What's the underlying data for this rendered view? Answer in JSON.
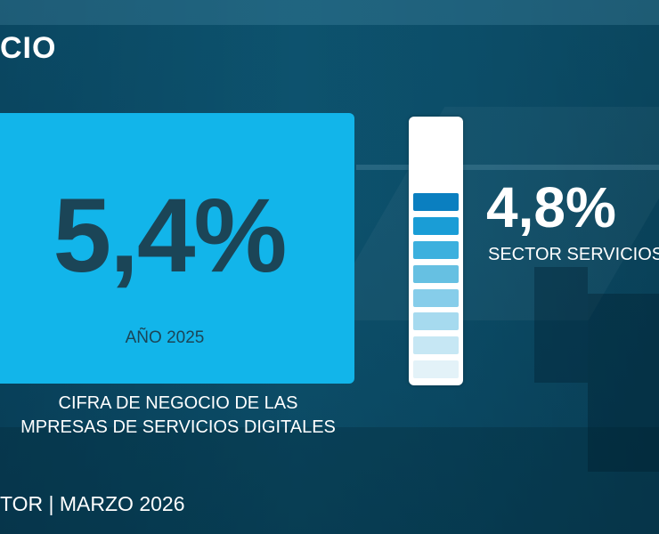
{
  "header": {
    "title": "CIO"
  },
  "main_stat": {
    "value": "5,4%",
    "caption": "AÑO 2025",
    "description_line1": "CIFRA DE NEGOCIO DE LAS",
    "description_line2": "MPRESAS DE SERVICIOS DIGITALES"
  },
  "comparison": {
    "value": "4,8%",
    "label": "SECTOR SERVICIOS",
    "meter_filled_segments": 8,
    "meter_total_segments": 8,
    "meter_colors": [
      "#0a7fc0",
      "#1a9dd6",
      "#3cb0de",
      "#66c0e2",
      "#86cdea",
      "#a6daef",
      "#c6e7f4",
      "#e3f2f8"
    ]
  },
  "footer": {
    "text": "TOR | MARZO 2026"
  },
  "colors": {
    "accent": "#12b5ea",
    "dark_text": "#1b4557",
    "background": "#0d4a66"
  }
}
